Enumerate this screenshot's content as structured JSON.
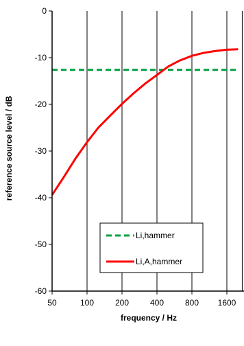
{
  "chart_data": {
    "type": "line",
    "xlabel": "frequency / Hz",
    "ylabel": "reference source level / dB",
    "x_scale": "log2",
    "x_ticks": [
      50,
      100,
      200,
      400,
      800,
      1600
    ],
    "x_tick_labels": [
      "50",
      "100",
      "200",
      "400",
      "800",
      "1600"
    ],
    "xlim": [
      50,
      2000
    ],
    "y_ticks": [
      0,
      -10,
      -20,
      -30,
      -40,
      -50,
      -60
    ],
    "y_tick_labels": [
      "0",
      "-10",
      "-20",
      "-30",
      "-40",
      "-50",
      "-60"
    ],
    "ylim": [
      -60,
      0
    ],
    "grid": "vertical",
    "legend_position": "bottom-center",
    "series": [
      {
        "name": "Li,hammer",
        "color": "#00a040",
        "style": "dashed",
        "x": [
          50,
          2000
        ],
        "y": [
          -12.6,
          -12.6
        ]
      },
      {
        "name": "Li,A,hammer",
        "color": "#ff0000",
        "style": "solid",
        "x": [
          50,
          63,
          80,
          100,
          125,
          160,
          200,
          250,
          315,
          400,
          500,
          630,
          800,
          1000,
          1250,
          1600,
          2000
        ],
        "y": [
          -39.4,
          -35.6,
          -31.5,
          -28.1,
          -25.0,
          -22.3,
          -19.9,
          -17.7,
          -15.6,
          -13.7,
          -11.9,
          -10.6,
          -9.6,
          -9.0,
          -8.6,
          -8.3,
          -8.2
        ]
      }
    ]
  }
}
